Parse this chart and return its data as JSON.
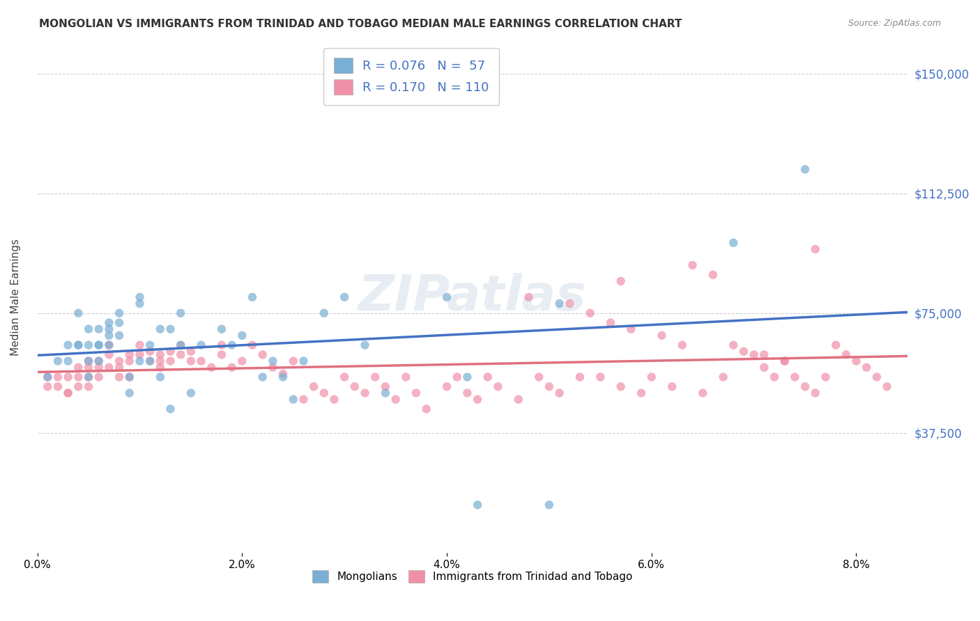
{
  "title": "MONGOLIAN VS IMMIGRANTS FROM TRINIDAD AND TOBAGO MEDIAN MALE EARNINGS CORRELATION CHART",
  "source": "Source: ZipAtlas.com",
  "xlabel_ticks": [
    "0.0%",
    "2.0%",
    "4.0%",
    "6.0%",
    "8.0%"
  ],
  "xlabel_vals": [
    0.0,
    0.02,
    0.04,
    0.06,
    0.08
  ],
  "ylabel": "Median Male Earnings",
  "ytick_labels": [
    "$37,500",
    "$75,000",
    "$112,500",
    "$150,000"
  ],
  "ytick_vals": [
    37500,
    75000,
    112500,
    150000
  ],
  "ylim": [
    0,
    160000
  ],
  "xlim": [
    0.0,
    0.085
  ],
  "watermark": "ZIPatlas",
  "legend_entries": [
    {
      "label": "Mongolians",
      "color": "#a8c4e0",
      "R": "0.076",
      "N": "57"
    },
    {
      "label": "Immigrants from Trinidad and Tobago",
      "color": "#f4a8b8",
      "R": "0.170",
      "N": "110"
    }
  ],
  "blue_line_color": "#4472c4",
  "pink_line_color": "#e07080",
  "scatter_blue_color": "#7aafd4",
  "scatter_pink_color": "#f090a8",
  "mongolians_x": [
    0.001,
    0.002,
    0.003,
    0.003,
    0.004,
    0.004,
    0.004,
    0.005,
    0.005,
    0.005,
    0.005,
    0.006,
    0.006,
    0.006,
    0.006,
    0.007,
    0.007,
    0.007,
    0.007,
    0.008,
    0.008,
    0.008,
    0.009,
    0.009,
    0.01,
    0.01,
    0.01,
    0.011,
    0.011,
    0.012,
    0.012,
    0.013,
    0.013,
    0.014,
    0.014,
    0.015,
    0.016,
    0.018,
    0.019,
    0.02,
    0.021,
    0.022,
    0.023,
    0.024,
    0.025,
    0.026,
    0.028,
    0.03,
    0.032,
    0.034,
    0.04,
    0.042,
    0.043,
    0.05,
    0.051,
    0.068,
    0.075
  ],
  "mongolians_y": [
    55000,
    60000,
    60000,
    65000,
    65000,
    65000,
    75000,
    70000,
    65000,
    60000,
    55000,
    70000,
    65000,
    65000,
    60000,
    72000,
    70000,
    68000,
    65000,
    75000,
    72000,
    68000,
    55000,
    50000,
    80000,
    78000,
    60000,
    65000,
    60000,
    70000,
    55000,
    70000,
    45000,
    75000,
    65000,
    50000,
    65000,
    70000,
    65000,
    68000,
    80000,
    55000,
    60000,
    55000,
    48000,
    60000,
    75000,
    80000,
    65000,
    50000,
    80000,
    55000,
    15000,
    15000,
    78000,
    97000,
    120000
  ],
  "trinidad_x": [
    0.001,
    0.001,
    0.002,
    0.002,
    0.003,
    0.003,
    0.003,
    0.004,
    0.004,
    0.004,
    0.005,
    0.005,
    0.005,
    0.005,
    0.006,
    0.006,
    0.006,
    0.007,
    0.007,
    0.007,
    0.008,
    0.008,
    0.008,
    0.009,
    0.009,
    0.009,
    0.01,
    0.01,
    0.011,
    0.011,
    0.012,
    0.012,
    0.012,
    0.013,
    0.013,
    0.014,
    0.014,
    0.015,
    0.015,
    0.016,
    0.017,
    0.018,
    0.018,
    0.019,
    0.02,
    0.021,
    0.022,
    0.023,
    0.024,
    0.025,
    0.026,
    0.027,
    0.028,
    0.029,
    0.03,
    0.031,
    0.032,
    0.033,
    0.034,
    0.035,
    0.036,
    0.037,
    0.038,
    0.04,
    0.041,
    0.042,
    0.043,
    0.044,
    0.045,
    0.047,
    0.049,
    0.05,
    0.051,
    0.053,
    0.055,
    0.057,
    0.059,
    0.06,
    0.062,
    0.065,
    0.067,
    0.068,
    0.07,
    0.071,
    0.072,
    0.073,
    0.074,
    0.075,
    0.076,
    0.077,
    0.078,
    0.079,
    0.08,
    0.081,
    0.082,
    0.083,
    0.064,
    0.066,
    0.057,
    0.048,
    0.052,
    0.054,
    0.056,
    0.058,
    0.061,
    0.063,
    0.069,
    0.071,
    0.073,
    0.076
  ],
  "trinidad_y": [
    55000,
    52000,
    55000,
    52000,
    55000,
    50000,
    50000,
    58000,
    55000,
    52000,
    60000,
    58000,
    55000,
    52000,
    60000,
    58000,
    55000,
    65000,
    62000,
    58000,
    60000,
    58000,
    55000,
    62000,
    60000,
    55000,
    65000,
    62000,
    63000,
    60000,
    62000,
    60000,
    58000,
    63000,
    60000,
    65000,
    62000,
    63000,
    60000,
    60000,
    58000,
    65000,
    62000,
    58000,
    60000,
    65000,
    62000,
    58000,
    56000,
    60000,
    48000,
    52000,
    50000,
    48000,
    55000,
    52000,
    50000,
    55000,
    52000,
    48000,
    55000,
    50000,
    45000,
    52000,
    55000,
    50000,
    48000,
    55000,
    52000,
    48000,
    55000,
    52000,
    50000,
    55000,
    55000,
    52000,
    50000,
    55000,
    52000,
    50000,
    55000,
    65000,
    62000,
    58000,
    55000,
    60000,
    55000,
    52000,
    50000,
    55000,
    65000,
    62000,
    60000,
    58000,
    55000,
    52000,
    90000,
    87000,
    85000,
    80000,
    78000,
    75000,
    72000,
    70000,
    68000,
    65000,
    63000,
    62000,
    60000,
    95000
  ]
}
